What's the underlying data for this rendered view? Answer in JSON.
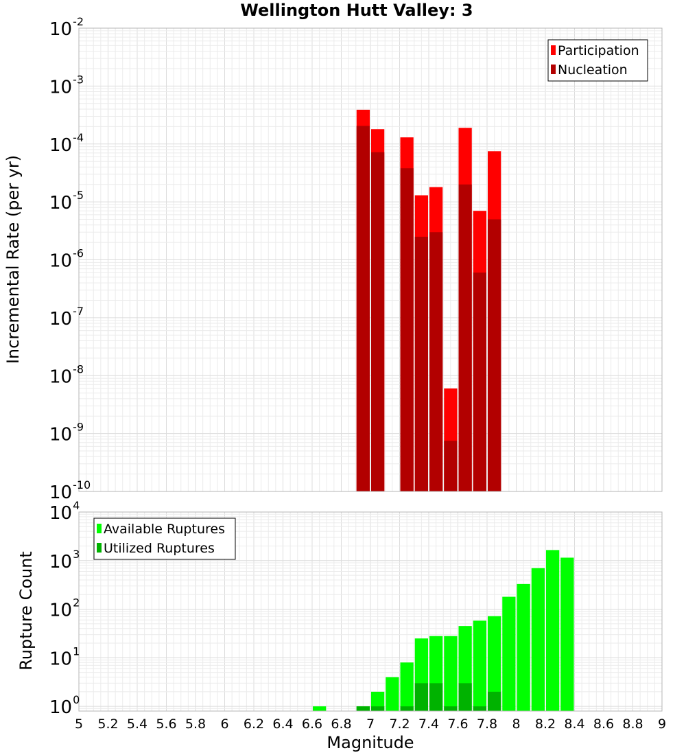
{
  "chart_data": [
    {
      "type": "bar",
      "title": "Wellington Hutt Valley: 3",
      "xlabel": "Magnitude",
      "ylabel": "Incremental Rate (per yr)",
      "yscale": "log",
      "xlim": [
        5,
        9
      ],
      "ylim": [
        1e-10,
        0.01
      ],
      "y_tick_exponents": [
        -10,
        -9,
        -8,
        -7,
        -6,
        -5,
        -4,
        -3,
        -2
      ],
      "bar_width": 0.1,
      "grid": true,
      "legend_position": "top-right",
      "series": [
        {
          "name": "Participation",
          "color": "#ff0000",
          "x": [
            6.95,
            7.05,
            7.25,
            7.35,
            7.45,
            7.55,
            7.65,
            7.75,
            7.85
          ],
          "values": [
            0.00039,
            0.00018,
            0.00013,
            1.3e-05,
            1.8e-05,
            6e-09,
            0.00019,
            7e-06,
            7.5e-05
          ]
        },
        {
          "name": "Nucleation",
          "color": "#b20000",
          "x": [
            6.95,
            7.05,
            7.25,
            7.35,
            7.45,
            7.55,
            7.65,
            7.75,
            7.85
          ],
          "values": [
            0.000205,
            7.2e-05,
            3.8e-05,
            2.5e-06,
            3e-06,
            7.5e-10,
            2e-05,
            6e-07,
            5e-06
          ]
        }
      ]
    },
    {
      "type": "bar",
      "xlabel": "Magnitude",
      "ylabel": "Rupture Count",
      "yscale": "log",
      "xlim": [
        5,
        9
      ],
      "ylim": [
        0.8,
        10000.0
      ],
      "y_tick_exponents": [
        0,
        1,
        2,
        3,
        4
      ],
      "x_ticks": [
        "5",
        "5.2",
        "5.4",
        "5.6",
        "5.8",
        "6",
        "6.2",
        "6.4",
        "6.6",
        "6.8",
        "7",
        "7.2",
        "7.4",
        "7.6",
        "7.8",
        "8",
        "8.2",
        "8.4",
        "8.6",
        "8.8",
        "9"
      ],
      "bar_width": 0.1,
      "grid": true,
      "legend_position": "top-left",
      "series": [
        {
          "name": "Available Ruptures",
          "color": "#00ff00",
          "x": [
            6.65,
            6.95,
            7.05,
            7.15,
            7.25,
            7.35,
            7.45,
            7.55,
            7.65,
            7.75,
            7.85,
            7.95,
            8.05,
            8.15,
            8.25,
            8.35
          ],
          "values": [
            1,
            1,
            2,
            4,
            8,
            25,
            28,
            28,
            45,
            58,
            72,
            180,
            330,
            700,
            1650,
            1150
          ]
        },
        {
          "name": "Utilized Ruptures",
          "color": "#00b200",
          "x": [
            6.95,
            7.05,
            7.25,
            7.35,
            7.45,
            7.55,
            7.65,
            7.75,
            7.85
          ],
          "values": [
            1,
            1,
            1,
            3,
            3,
            1,
            3,
            1,
            2
          ]
        }
      ]
    }
  ]
}
